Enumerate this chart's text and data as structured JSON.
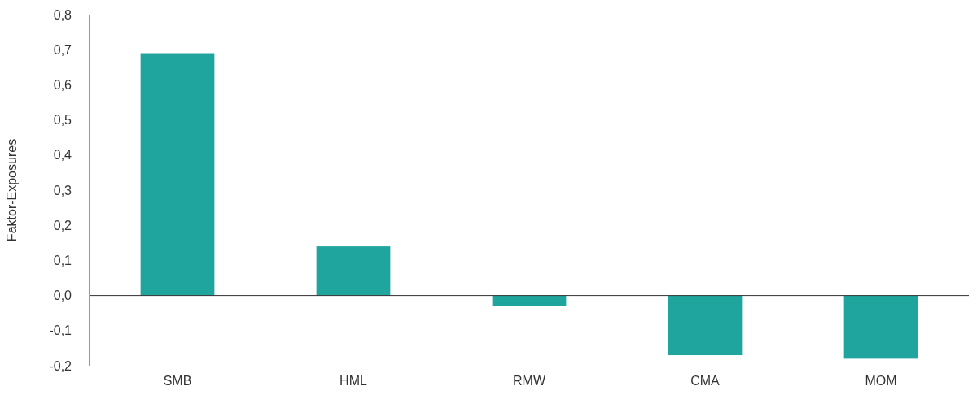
{
  "chart_data": {
    "type": "bar",
    "ylabel": "Faktor-Exposures",
    "categories": [
      "SMB",
      "HML",
      "RMW",
      "CMA",
      "MOM"
    ],
    "values": [
      0.69,
      0.14,
      -0.03,
      -0.17,
      -0.18
    ],
    "color": "#1fa59d",
    "ylim": [
      -0.2,
      0.8
    ],
    "yticks": [
      {
        "value": -0.2,
        "label": "-0,2"
      },
      {
        "value": -0.1,
        "label": "-0,1"
      },
      {
        "value": 0,
        "label": "0,0"
      },
      {
        "value": 0.1,
        "label": "0,1"
      },
      {
        "value": 0.2,
        "label": "0,2"
      },
      {
        "value": 0.3,
        "label": "0,3"
      },
      {
        "value": 0.4,
        "label": "0,4"
      },
      {
        "value": 0.5,
        "label": "0,5"
      },
      {
        "value": 0.6,
        "label": "0,6"
      },
      {
        "value": 0.7,
        "label": "0,7"
      },
      {
        "value": 0.8,
        "label": "0,8"
      }
    ],
    "line_style": "solid"
  }
}
